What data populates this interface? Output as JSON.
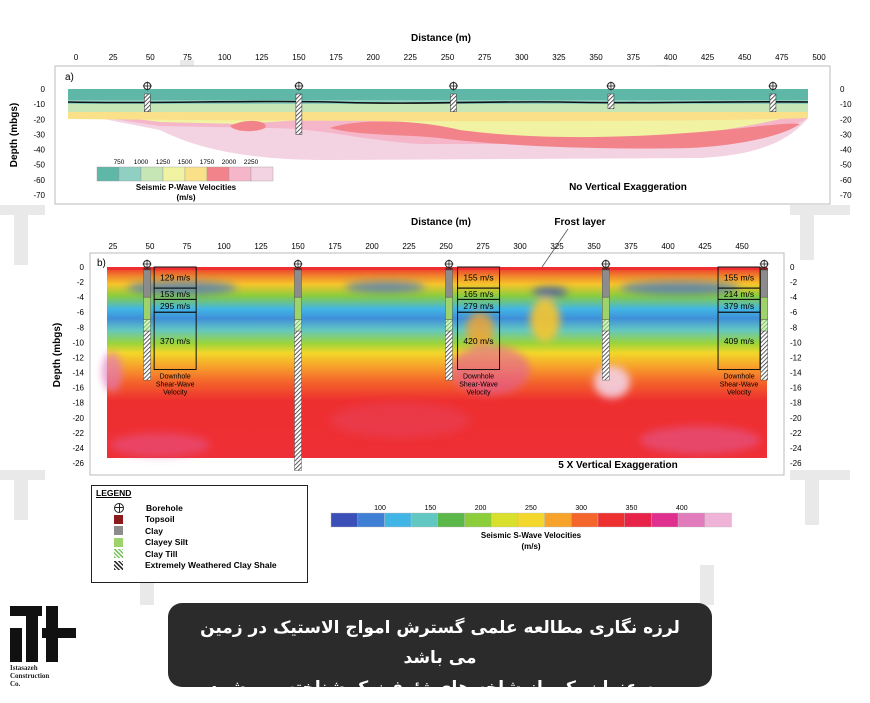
{
  "chart_data": [
    {
      "type": "heatmap",
      "panel_label": "a)",
      "xlabel": "Distance (m)",
      "ylabel": "Depth (mbgs)",
      "x_ticks": [
        "0",
        "25",
        "50",
        "75",
        "100",
        "125",
        "150",
        "175",
        "200",
        "225",
        "250",
        "275",
        "300",
        "325",
        "350",
        "375",
        "400",
        "425",
        "450",
        "475",
        "500"
      ],
      "y_ticks": [
        "0",
        "-10",
        "-20",
        "-30",
        "-40",
        "-50",
        "-60",
        "-70"
      ],
      "xlim": [
        0,
        500
      ],
      "ylim": [
        -73,
        8
      ],
      "annotation": "No Vertical Exaggeration",
      "colorbar": {
        "title": "Seismic P-Wave Velocities",
        "unit": "(m/s)",
        "tick_labels": [
          "750",
          "1000",
          "1250",
          "1500",
          "1750",
          "2000",
          "2250"
        ],
        "colors": [
          "#5fb7a8",
          "#8fd0c2",
          "#c7e6b6",
          "#f1f3a2",
          "#fbe08a",
          "#f3838a",
          "#f4b6c8",
          "#f3d2e2"
        ]
      },
      "boreholes_x": [
        48,
        150,
        254,
        360,
        469
      ],
      "borehole_bottoms": [
        -15,
        -30,
        -15,
        -13,
        -15
      ]
    },
    {
      "type": "heatmap",
      "panel_label": "b)",
      "xlabel": "Distance (m)",
      "ylabel": "Depth (mbgs)",
      "x_ticks": [
        "25",
        "50",
        "75",
        "100",
        "125",
        "150",
        "175",
        "200",
        "225",
        "250",
        "275",
        "300",
        "325",
        "350",
        "375",
        "400",
        "425",
        "450"
      ],
      "y_ticks": [
        "0",
        "-2",
        "-4",
        "-6",
        "-8",
        "-10",
        "-12",
        "-14",
        "-16",
        "-18",
        "-20",
        "-22",
        "-24",
        "-26"
      ],
      "xlim": [
        14,
        468
      ],
      "ylim": [
        -26.8,
        0.8
      ],
      "annotation": "5 X Vertical Exaggeration",
      "frost_label": "Frost layer",
      "downhole_label": [
        "Downhole",
        "Shear-Wave",
        "Velocity"
      ],
      "boreholes_x": [
        48,
        150,
        252,
        358,
        465
      ],
      "borehole_bottoms": [
        -15,
        -27,
        -15,
        -15,
        -15
      ],
      "downhole_profiles": [
        {
          "x": 67,
          "values": [
            "129 m/s",
            "153 m/s",
            "295 m/s",
            "370 m/s"
          ]
        },
        {
          "x": 272,
          "values": [
            "155 m/s",
            "165 m/s",
            "279 m/s",
            "420 m/s"
          ]
        },
        {
          "x": 448,
          "values": [
            "155 m/s",
            "214 m/s",
            "379 m/s",
            "409 m/s"
          ]
        }
      ],
      "colorbar": {
        "title": "Seismic S-Wave Velocities",
        "unit": "(m/s)",
        "tick_labels": [
          "100",
          "150",
          "200",
          "250",
          "300",
          "350",
          "400"
        ],
        "colors": [
          "#3b4fb8",
          "#3f7fd6",
          "#41b6e6",
          "#63c7c1",
          "#5cb84a",
          "#8ccd3c",
          "#d8df2c",
          "#f3d72a",
          "#f7a22b",
          "#f4652b",
          "#ee2f2f",
          "#e8234a",
          "#e0308f",
          "#e27bbc",
          "#efb3d7"
        ]
      }
    }
  ],
  "legend": {
    "title": "LEGEND",
    "items": [
      {
        "label": "Borehole",
        "swatch": "borehole",
        "color": "#222222"
      },
      {
        "label": "Topsoil",
        "swatch": "solid",
        "color": "#8b1a1a"
      },
      {
        "label": "Clay",
        "swatch": "solid",
        "color": "#8c8c8c"
      },
      {
        "label": "Clayey Silt",
        "swatch": "solid",
        "color": "#9ed26a"
      },
      {
        "label": "Clay Till",
        "swatch": "hatch",
        "color": "#7cc464"
      },
      {
        "label": "Extremely Weathered Clay Shale",
        "swatch": "hatch",
        "color": "#333333"
      }
    ]
  },
  "caption": {
    "line1": "لرزه نگاری مطالعه علمی گسترش امواج الاستیک در زمین می باشد",
    "line2": "و به عنوان یکی از شاخه های ژئوفیزیک شناخته می شود."
  },
  "logo": {
    "line1": "Istasazeh",
    "line2": "Construction",
    "line3": "Co."
  }
}
